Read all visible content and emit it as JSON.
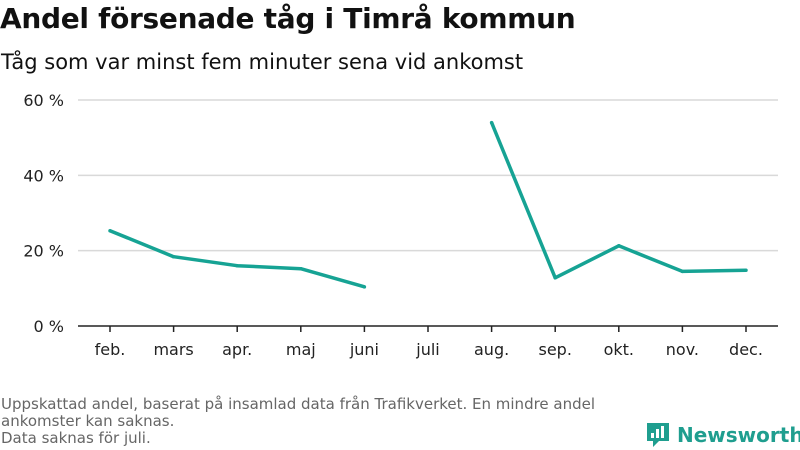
{
  "header": {
    "title": "Andel försenade tåg i Timrå kommun",
    "subtitle": "Tåg som var minst fem minuter sena vid ankomst"
  },
  "footer": {
    "note_line1": "Uppskattad andel, baserat på insamlad data från Trafikverket. En mindre andel ankomster kan saknas.",
    "note_line2": "Data saknas för juli."
  },
  "brand": {
    "name": "Newsworthy",
    "icon": "newsworthy-logo-icon",
    "color": "#1f9e8f"
  },
  "chart_data": {
    "type": "line",
    "title": "Andel försenade tåg i Timrå kommun",
    "subtitle": "Tåg som var minst fem minuter sena vid ankomst",
    "categories": [
      "feb.",
      "mars",
      "apr.",
      "maj",
      "juni",
      "juli",
      "aug.",
      "sep.",
      "okt.",
      "nov.",
      "dec."
    ],
    "series": [
      {
        "color": "#16a394",
        "values": [
          25.3,
          18.4,
          16.0,
          15.2,
          10.4,
          null,
          54.0,
          12.8,
          21.3,
          14.5,
          14.8
        ]
      }
    ],
    "ylim": [
      0,
      60
    ],
    "yticks": [
      0,
      20,
      40,
      60
    ],
    "ytick_labels": [
      "0 %",
      "20 %",
      "40 %",
      "60 %"
    ],
    "grid": true
  }
}
